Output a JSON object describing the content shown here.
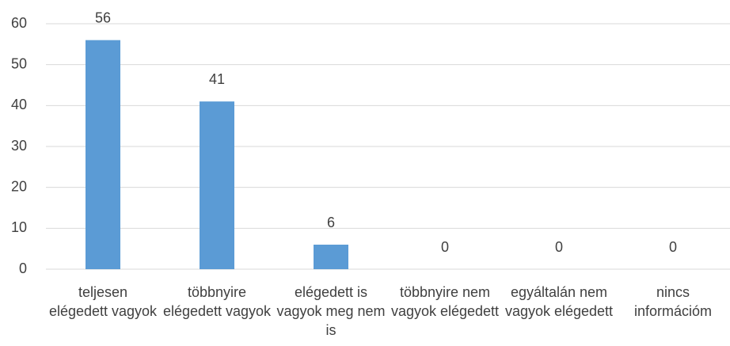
{
  "chart_data": {
    "type": "bar",
    "categories": [
      "teljesen elégedett vagyok",
      "többnyire elégedett vagyok",
      "elégedett is vagyok meg nem is",
      "többnyire nem vagyok elégedett",
      "egyáltalán nem vagyok elégedett",
      "nincs információm"
    ],
    "values": [
      56,
      41,
      6,
      0,
      0,
      0
    ],
    "color": "#5b9bd5",
    "ylim": [
      0,
      60
    ],
    "yticks": [
      0,
      10,
      20,
      30,
      40,
      50,
      60
    ],
    "grid": true
  }
}
